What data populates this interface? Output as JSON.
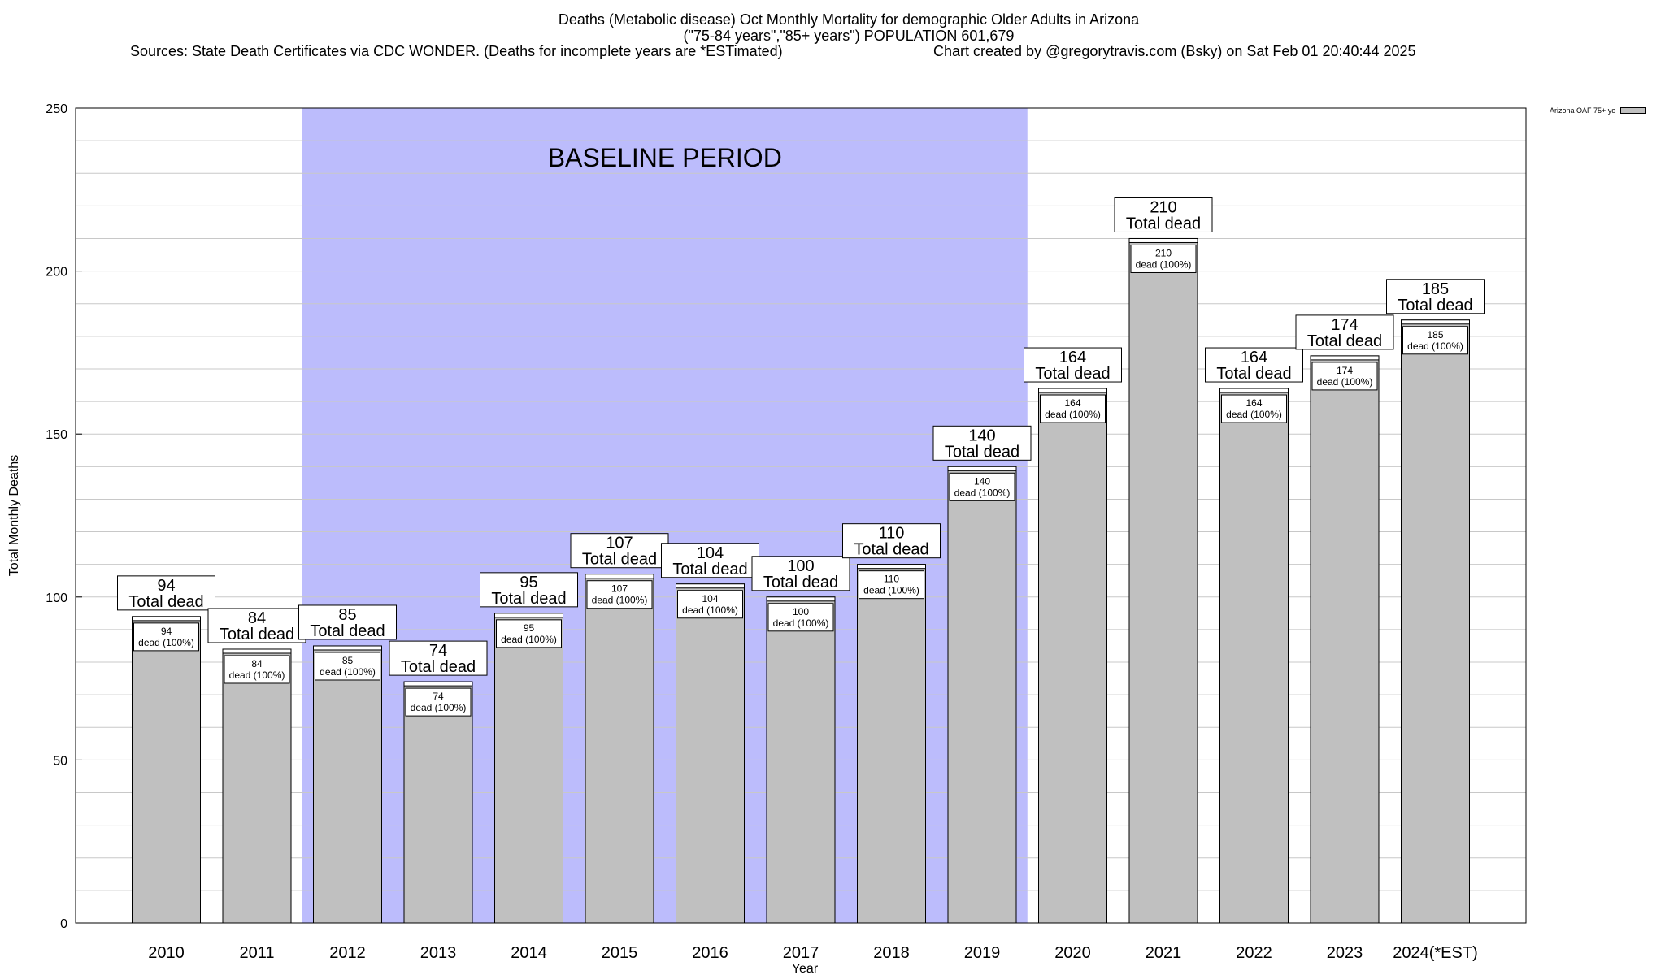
{
  "titles": {
    "line1": "Deaths (Metabolic disease) Oct Monthly Mortality for demographic Older Adults in Arizona",
    "line2": "(\"75-84 years\",\"85+ years\") POPULATION 601,679",
    "line3a": "Sources: State Death Certificates via CDC WONDER. (Deaths for incomplete years are *ESTimated)",
    "line3b": "Chart created by @gregorytravis.com (Bsky) on Sat Feb 01 20:40:44 2025"
  },
  "chart_data": {
    "type": "bar",
    "categories": [
      "2010",
      "2011",
      "2012",
      "2013",
      "2014",
      "2015",
      "2016",
      "2017",
      "2018",
      "2019",
      "2020",
      "2021",
      "2022",
      "2023",
      "2024(*EST)"
    ],
    "series": [
      {
        "name": "Arizona OAF 75+ yo",
        "values": [
          94,
          84,
          85,
          74,
          95,
          107,
          104,
          100,
          110,
          140,
          164,
          210,
          164,
          174,
          185
        ]
      }
    ],
    "xlabel": "Year",
    "ylabel": "Total Monthly Deaths",
    "ylim": [
      0,
      250
    ],
    "yticks": [
      0,
      50,
      100,
      150,
      200,
      250
    ],
    "grid": true,
    "legend_position": "top-right",
    "bar_label_top": "Total dead",
    "bar_label_inner": "dead (100%)",
    "baseline_label": "BASELINE PERIOD",
    "baseline_range": [
      "2012",
      "2019"
    ],
    "colors": {
      "bar": "#c0c0c0",
      "baseline": "#bcbcfc",
      "grid": "#c8c8c8"
    }
  }
}
